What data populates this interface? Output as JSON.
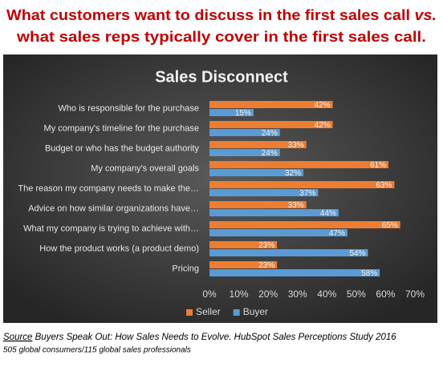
{
  "chart_data": {
    "type": "bar",
    "orientation": "horizontal",
    "heading": {
      "before": "What customers want to discuss in the first sales call ",
      "emphasis": "vs.",
      "after": "what sales reps typically cover in the first sales call."
    },
    "title": "Sales Disconnect",
    "categories": [
      "Who is responsible for the purchase",
      "My company's timeline for the purchase",
      "Budget or who has the budget authority",
      "My company's overall goals",
      "The reason my company needs to make the…",
      "Advice on how similar organizations have…",
      "What my company is trying to achieve with…",
      "How the product works (a product demo)",
      "Pricing"
    ],
    "series": [
      {
        "name": "Seller",
        "color": "#ed7d31",
        "values": [
          42,
          42,
          33,
          61,
          63,
          33,
          65,
          23,
          23
        ],
        "value_labels": [
          "42%",
          "42%",
          "33%",
          "61%",
          "63%",
          "33%",
          "65%",
          "23%",
          "23%"
        ]
      },
      {
        "name": "Buyer",
        "color": "#5b9bd5",
        "values": [
          15,
          24,
          24,
          32,
          37,
          44,
          47,
          54,
          58
        ],
        "value_labels": [
          "15%",
          "24%",
          "24%",
          "32%",
          "37%",
          "44%",
          "47%",
          "54%",
          "58%"
        ]
      }
    ],
    "xlim": [
      0,
      70
    ],
    "xticks": [
      {
        "value": 0,
        "label": "0%"
      },
      {
        "value": 10,
        "label": "10%"
      },
      {
        "value": 20,
        "label": "20%"
      },
      {
        "value": 30,
        "label": "30%"
      },
      {
        "value": 40,
        "label": "40%"
      },
      {
        "value": 50,
        "label": "50%"
      },
      {
        "value": 60,
        "label": "60%"
      },
      {
        "value": 70,
        "label": "70%"
      }
    ],
    "legend": "bottom",
    "source": {
      "label": "Source",
      "text": " Buyers Speak Out: How Sales Needs to Evolve. HubSpot Sales Perceptions Study 2016",
      "note": "505 global consumers/115 global sales professionals"
    }
  }
}
